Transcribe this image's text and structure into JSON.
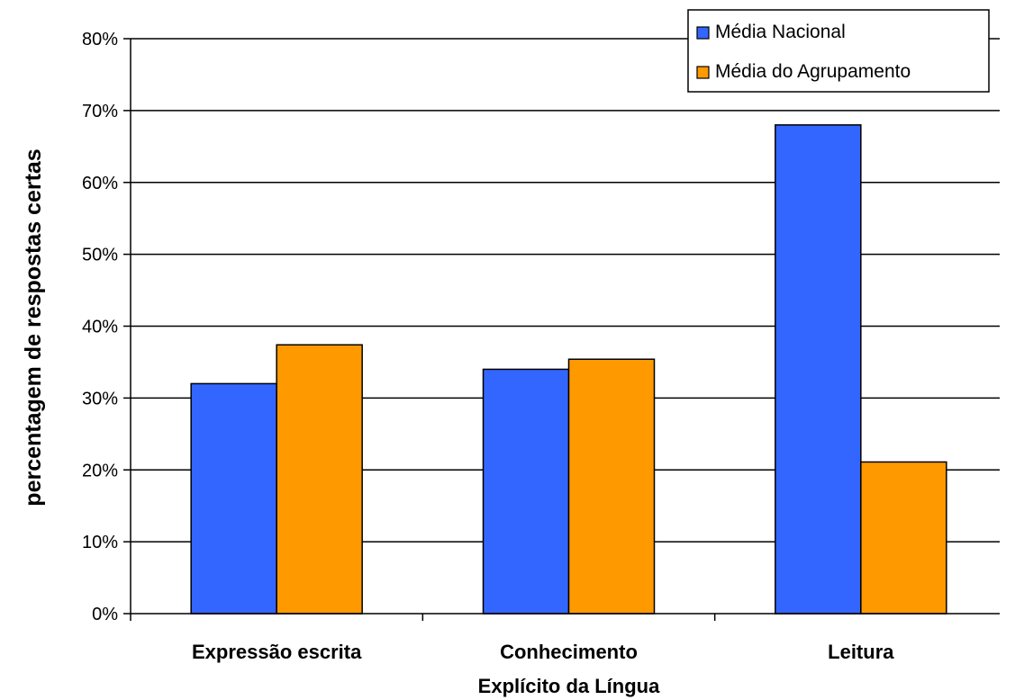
{
  "chart_data": {
    "type": "bar",
    "categories": [
      [
        "Expressão escrita"
      ],
      [
        "Conhecimento",
        "Explícito da Língua"
      ],
      [
        "Leitura"
      ]
    ],
    "series": [
      {
        "name": "Média Nacional",
        "values": [
          32,
          34,
          68
        ],
        "color": "#3366FF"
      },
      {
        "name": "Média do Agrupamento",
        "values": [
          37.4,
          35.4,
          21.1
        ],
        "color": "#FF9900"
      }
    ],
    "ylim": [
      0,
      80
    ],
    "yticks": [
      "0%",
      "10%",
      "20%",
      "30%",
      "40%",
      "50%",
      "60%",
      "70%",
      "80%"
    ],
    "ylabel": "percentagem de respostas certas",
    "xlabel": "",
    "grid": true,
    "legend_position": "top-right"
  }
}
